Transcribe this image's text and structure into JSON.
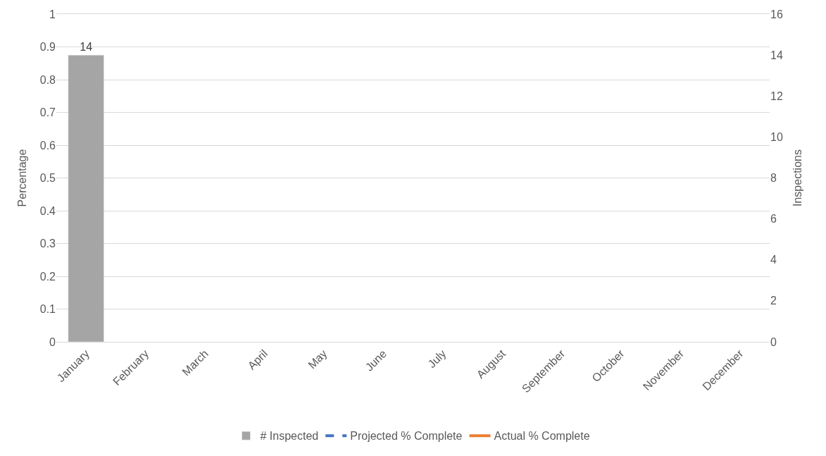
{
  "chart_data": {
    "type": "bar",
    "ylabel": "Percentage",
    "y2label": "Inspections",
    "categories": [
      "January",
      "February",
      "March",
      "April",
      "May",
      "June",
      "July",
      "August",
      "September",
      "October",
      "November",
      "December"
    ],
    "series": [
      {
        "name": "# Inspected",
        "axis": "y2",
        "color": "#a5a5a5",
        "values": [
          14,
          null,
          null,
          null,
          null,
          null,
          null,
          null,
          null,
          null,
          null,
          null
        ]
      },
      {
        "name": "Projected % Complete",
        "type": "line",
        "color": "#4472c4",
        "line_style": "dashed",
        "values": [
          null,
          null,
          null,
          null,
          null,
          null,
          null,
          null,
          null,
          null,
          null,
          null
        ]
      },
      {
        "name": "Actual % Complete",
        "type": "line",
        "color": "#ed7d31",
        "line_style": "solid",
        "values": [
          null,
          null,
          null,
          null,
          null,
          null,
          null,
          null,
          null,
          null,
          null,
          null
        ]
      }
    ],
    "data_labels": true,
    "ylim": [
      0,
      1
    ],
    "yticks": [
      0,
      0.1,
      0.2,
      0.3,
      0.4,
      0.5,
      0.6,
      0.7,
      0.8,
      0.9,
      1
    ],
    "y2lim": [
      0,
      16
    ],
    "y2ticks": [
      0,
      2,
      4,
      6,
      8,
      10,
      12,
      14,
      16
    ],
    "grid": "y",
    "legend": "bottom"
  }
}
